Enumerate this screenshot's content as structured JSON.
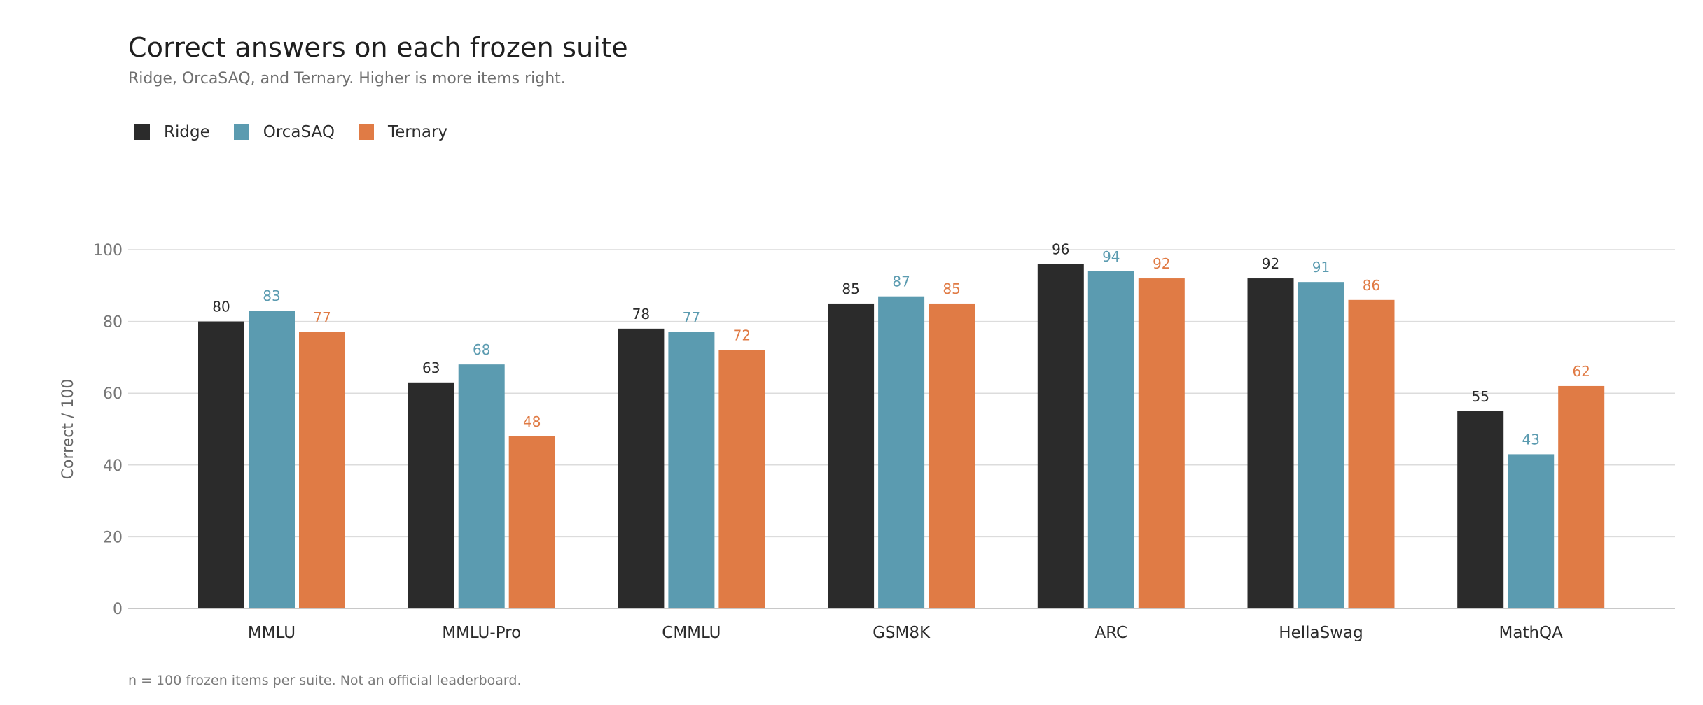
{
  "chart_data": {
    "type": "bar",
    "title": "Correct answers on each frozen suite",
    "subtitle": "Ridge, OrcaSAQ, and Ternary. Higher is more items right.",
    "ylabel": "Correct / 100",
    "xlabel": "",
    "ylim": [
      0,
      100
    ],
    "yticks": [
      0,
      20,
      40,
      60,
      80,
      100
    ],
    "grid": true,
    "legend_position": "top-left",
    "categories": [
      "MMLU",
      "MMLU-Pro",
      "CMMLU",
      "GSM8K",
      "ARC",
      "HellaSwag",
      "MathQA"
    ],
    "series": [
      {
        "name": "Ridge",
        "color": "#2b2b2b",
        "label_color": "#2b2b2b",
        "values": [
          80,
          63,
          78,
          85,
          96,
          92,
          55
        ]
      },
      {
        "name": "OrcaSAQ",
        "color": "#5b9bb0",
        "label_color": "#5b9bb0",
        "values": [
          83,
          68,
          77,
          87,
          94,
          91,
          43
        ]
      },
      {
        "name": "Ternary",
        "color": "#e07b45",
        "label_color": "#e07b45",
        "values": [
          77,
          48,
          72,
          85,
          92,
          86,
          62
        ]
      }
    ],
    "footnote": "n = 100 frozen items per suite. Not an official leaderboard."
  }
}
